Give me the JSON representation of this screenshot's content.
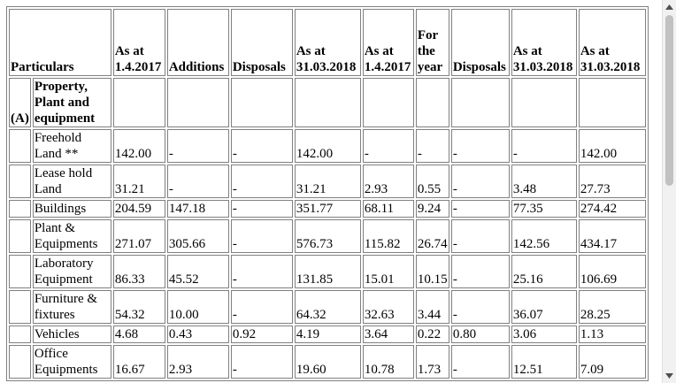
{
  "header": {
    "particulars": "Particulars",
    "as_at": "As at",
    "additions": "Additions",
    "disposals": "Disposals",
    "for": "For",
    "the": "the",
    "year": "year",
    "date_1_4_2017": "1.4.2017",
    "date_31_03_2018": "31.03.2018"
  },
  "section_a": {
    "marker": "(A)",
    "title": "Property, Plant and equipment"
  },
  "rows": [
    {
      "name": "Freehold Land **",
      "values": [
        "142.00",
        "-",
        "-",
        "142.00",
        "-",
        "-",
        "-",
        "-",
        "142.00"
      ]
    },
    {
      "name": "Lease hold Land",
      "values": [
        "31.21",
        "-",
        "-",
        "31.21",
        "2.93",
        "0.55",
        "-",
        "3.48",
        "27.73"
      ]
    },
    {
      "name": "Buildings",
      "values": [
        "204.59",
        "147.18",
        "-",
        "351.77",
        "68.11",
        "9.24",
        "-",
        "77.35",
        "274.42"
      ]
    },
    {
      "name": "Plant & Equipments",
      "values": [
        "271.07",
        "305.66",
        "-",
        "576.73",
        "115.82",
        "26.74",
        "-",
        "142.56",
        "434.17"
      ]
    },
    {
      "name": "Laboratory Equipment",
      "values": [
        "86.33",
        "45.52",
        "-",
        "131.85",
        "15.01",
        "10.15",
        "-",
        "25.16",
        "106.69"
      ]
    },
    {
      "name": "Furniture & fixtures",
      "values": [
        "54.32",
        "10.00",
        "-",
        "64.32",
        "32.63",
        "3.44",
        "-",
        "36.07",
        "28.25"
      ]
    },
    {
      "name": "Vehicles",
      "values": [
        "4.68",
        "0.43",
        "0.92",
        "4.19",
        "3.64",
        "0.22",
        "0.80",
        "3.06",
        "1.13"
      ]
    },
    {
      "name": "Office Equipments",
      "values": [
        "16.67",
        "2.93",
        "-",
        "19.60",
        "10.78",
        "1.73",
        "-",
        "12.51",
        "7.09"
      ]
    }
  ],
  "scrollbar": {
    "up_icon": "triangle-up-icon",
    "down_icon": "triangle-down-icon",
    "color": "#c1c1c1"
  }
}
